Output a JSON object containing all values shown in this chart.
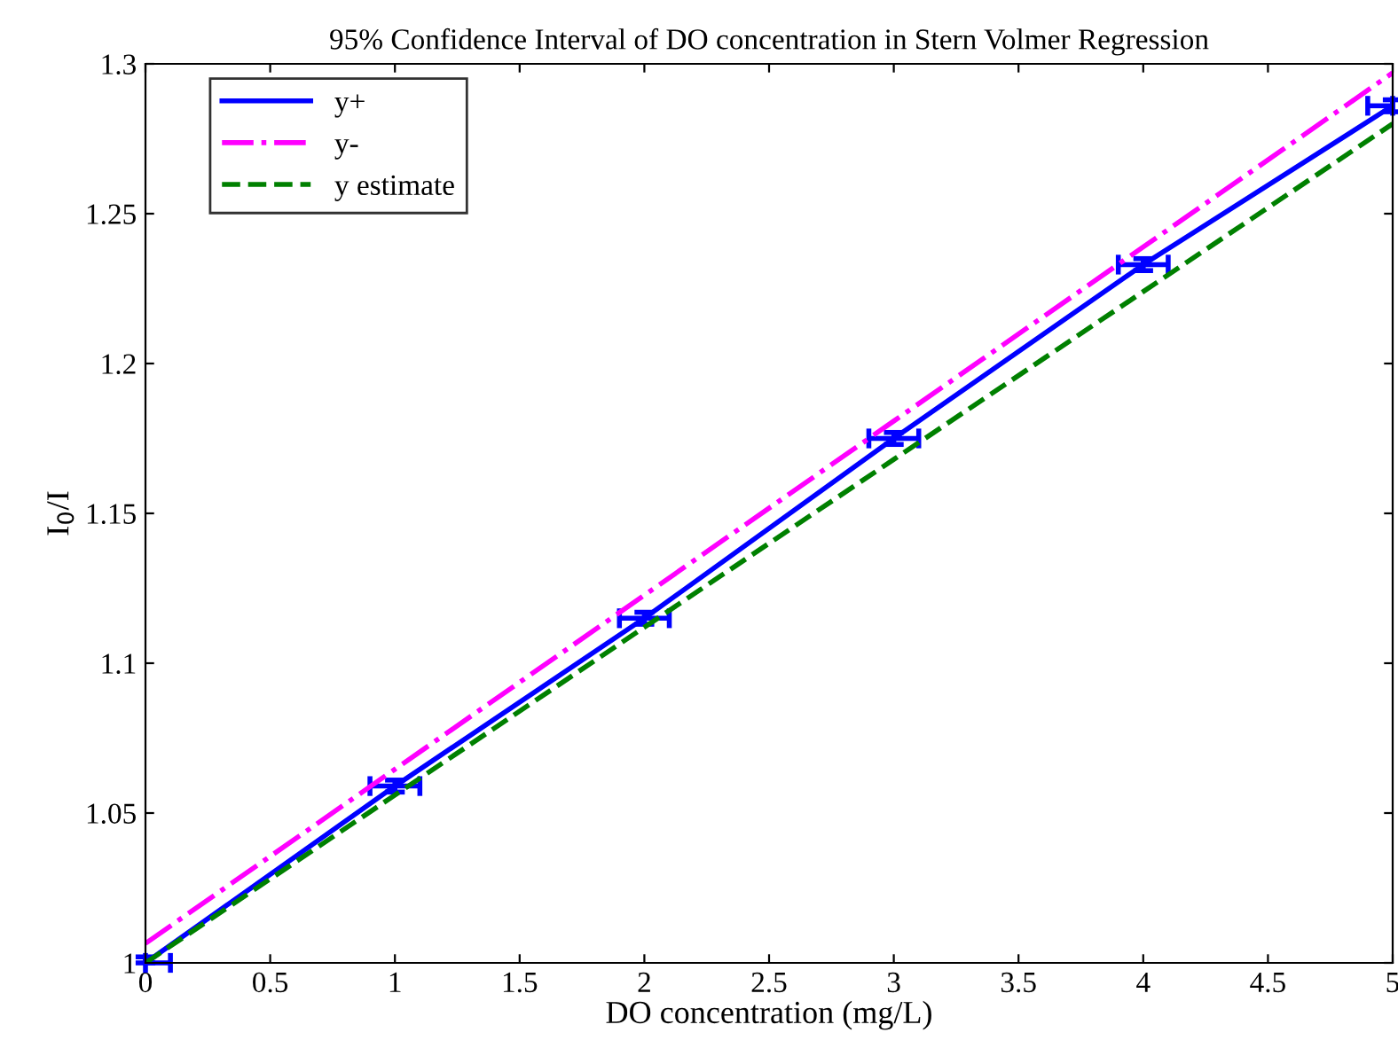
{
  "chart_data": {
    "type": "line",
    "title": "95% Confidence Interval of DO concentration in Stern Volmer Regression",
    "xlabel": "DO concentration (mg/L)",
    "ylabel": "I$_{0}$/I",
    "x": [
      0,
      1,
      2,
      3,
      4,
      5
    ],
    "series": [
      {
        "name": "y+",
        "color": "#0000ff",
        "line_style": "solid",
        "values": [
          1.0,
          1.059,
          1.115,
          1.175,
          1.233,
          1.286
        ],
        "xerrors": [
          [
            0,
            0.1
          ],
          0.1,
          0.1,
          0.1,
          0.1,
          [
            4.9,
            5
          ]
        ],
        "errors": [
          [
            1.0,
            1.002
          ],
          0.002,
          0.002,
          0.002,
          0.002,
          0.002
        ]
      },
      {
        "name": "y-",
        "color": "#ff00ff",
        "line_style": "dashdot",
        "values": [
          1.0065,
          1.0646,
          1.1227,
          1.1808,
          1.2389,
          1.297
        ]
      },
      {
        "name": "y estimate",
        "color": "#008000",
        "line_style": "dashed",
        "values": [
          1.0,
          1.056,
          1.112,
          1.168,
          1.224,
          1.28
        ]
      }
    ],
    "xlim": [
      0,
      5
    ],
    "xticks": [
      0,
      0.5,
      1,
      1.5,
      2,
      2.5,
      3,
      3.5,
      4,
      4.5,
      5
    ],
    "ylim": [
      1,
      1.3
    ],
    "yticks": [
      1,
      1.05,
      1.1,
      1.15,
      1.2,
      1.25,
      1.3
    ],
    "legend": "top left"
  }
}
